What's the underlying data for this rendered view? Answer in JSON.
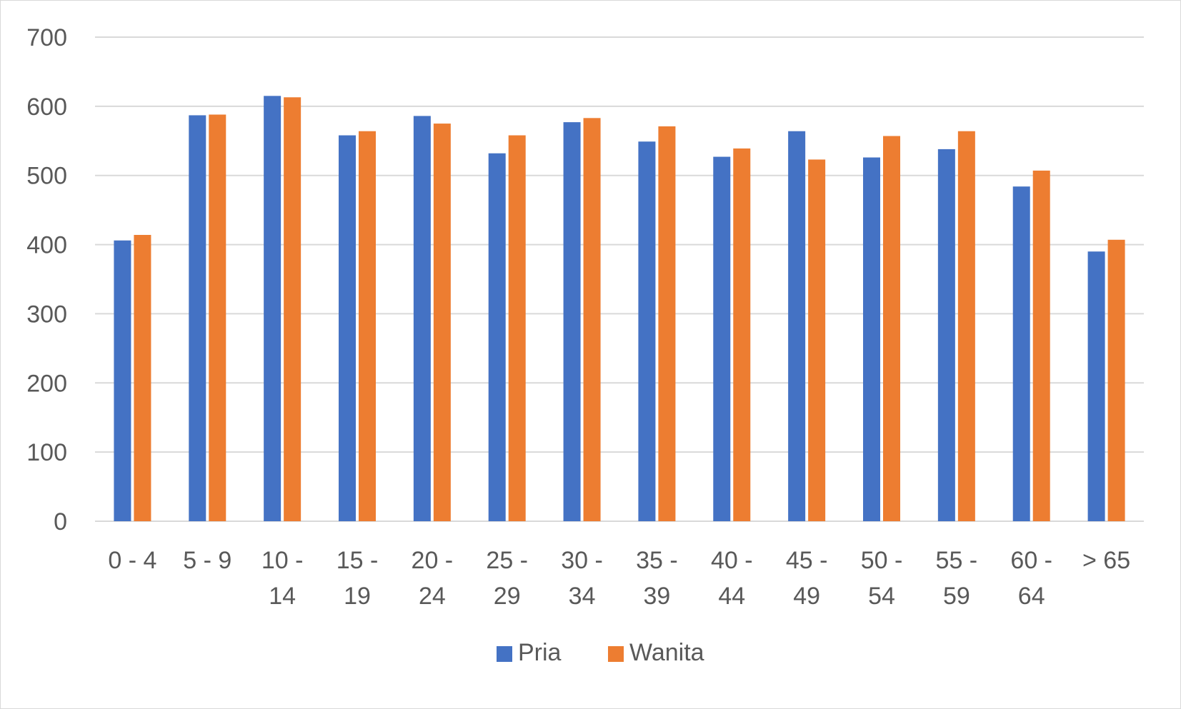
{
  "chart_data": {
    "type": "bar",
    "title": "",
    "xlabel": "",
    "ylabel": "",
    "ylim": [
      0,
      700
    ],
    "yticks": [
      0,
      100,
      200,
      300,
      400,
      500,
      600,
      700
    ],
    "grid": true,
    "legend_position": "bottom",
    "categories": [
      [
        "0 - 4"
      ],
      [
        "5 - 9"
      ],
      [
        "10 -",
        "14"
      ],
      [
        "15 -",
        "19"
      ],
      [
        "20 -",
        "24"
      ],
      [
        "25 -",
        "29"
      ],
      [
        "30 -",
        "34"
      ],
      [
        "35 -",
        "39"
      ],
      [
        "40 -",
        "44"
      ],
      [
        "45 -",
        "49"
      ],
      [
        "50 -",
        "54"
      ],
      [
        "55 -",
        "59"
      ],
      [
        "60 -",
        "64"
      ],
      [
        "> 65"
      ]
    ],
    "series": [
      {
        "name": "Pria",
        "color": "#4472c4",
        "values": [
          406,
          587,
          615,
          558,
          586,
          532,
          577,
          549,
          527,
          564,
          526,
          538,
          484,
          390
        ]
      },
      {
        "name": "Wanita",
        "color": "#ed7d31",
        "values": [
          414,
          588,
          613,
          564,
          575,
          558,
          583,
          571,
          539,
          523,
          557,
          564,
          507,
          407
        ]
      }
    ]
  }
}
